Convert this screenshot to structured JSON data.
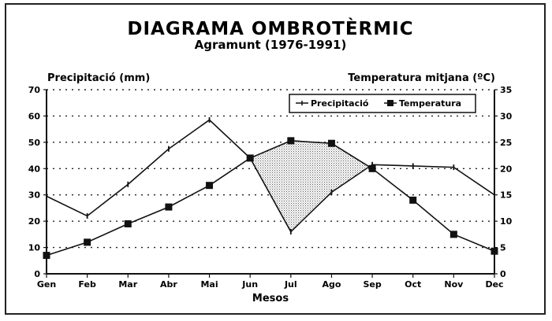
{
  "chart_data": {
    "type": "line",
    "title": "DIAGRAMA OMBROTÈRMIC",
    "subtitle": "Agramunt (1976-1991)",
    "xlabel": "Mesos",
    "ylabel_left": "Precipitació (mm)",
    "ylabel_right": "Temperatura mitjana (ºC)",
    "categories": [
      "Gen",
      "Feb",
      "Mar",
      "Abr",
      "Mai",
      "Jun",
      "Jul",
      "Ago",
      "Sep",
      "Oct",
      "Nov",
      "Dec"
    ],
    "ylim_left": [
      0,
      70
    ],
    "ylim_right": [
      0,
      35
    ],
    "yticks_left": [
      "0",
      "10",
      "20",
      "30",
      "40",
      "50",
      "60",
      "70"
    ],
    "yticks_right": [
      "0",
      "5",
      "10",
      "15",
      "20",
      "25",
      "30",
      "35"
    ],
    "grid": "horizontal dotted",
    "legend_position": "top-right",
    "series": [
      {
        "name": "Precipitació",
        "axis": "left",
        "marker": "small-tick",
        "values": [
          29.5,
          22,
          34,
          47.5,
          58.5,
          44,
          16,
          31,
          41.5,
          41,
          40.5,
          30
        ]
      },
      {
        "name": "Temperatura",
        "axis": "right",
        "marker": "filled-square",
        "values": [
          3.5,
          6,
          9.5,
          12.7,
          16.8,
          22,
          25.3,
          24.8,
          20,
          14,
          7.5,
          4.3
        ]
      }
    ],
    "shaded_region": {
      "between": [
        "Temperatura",
        "Precipitació"
      ],
      "from": "Jun",
      "to": "Sep",
      "meaning": "dry period"
    }
  }
}
